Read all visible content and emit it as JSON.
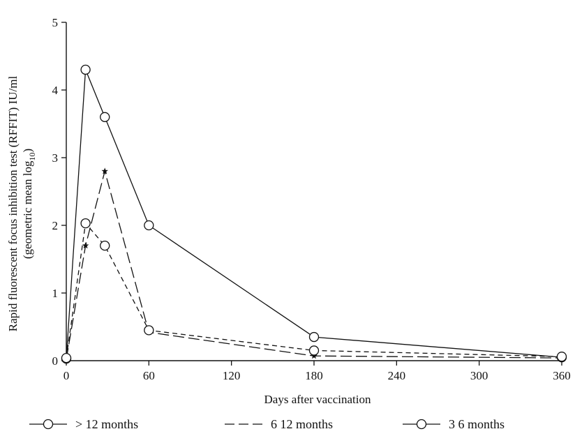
{
  "chart_data": {
    "type": "line",
    "title": "",
    "xlabel": "Days after vaccination",
    "ylabel_line1": "Rapid fluorescent focus inhibition test (RFFIT) IU/ml",
    "ylabel_line2_prefix": "(geometric mean log",
    "ylabel_line2_sub": "10",
    "ylabel_line2_suffix": ")",
    "xlim": [
      0,
      360
    ],
    "ylim": [
      0,
      5
    ],
    "x_ticks": [
      0,
      60,
      120,
      180,
      240,
      300,
      360
    ],
    "x_tick_labels": [
      "0",
      "60",
      "120",
      "180",
      "240",
      "300",
      "360"
    ],
    "y_ticks": [
      0,
      1,
      2,
      3,
      4,
      5
    ],
    "y_tick_labels": [
      "0",
      "1",
      "2",
      "3",
      "4",
      "5"
    ],
    "grid": false,
    "legend_position": "bottom",
    "series": [
      {
        "name": "> 12 months",
        "line_style": "solid",
        "marker": "circle",
        "x": [
          0,
          14,
          28,
          60,
          180,
          360
        ],
        "y": [
          0.03,
          4.3,
          3.6,
          2.0,
          0.35,
          0.05
        ]
      },
      {
        "name": "6 12 months",
        "line_style": "long-dash",
        "marker": "star",
        "x": [
          0,
          14,
          28,
          60,
          180,
          360
        ],
        "y": [
          0.02,
          1.7,
          2.8,
          0.42,
          0.07,
          0.04
        ]
      },
      {
        "name": "3 6 months",
        "line_style": "short-dash",
        "marker": "circle",
        "x": [
          0,
          14,
          28,
          60,
          180,
          360
        ],
        "y": [
          0.04,
          2.03,
          1.7,
          0.45,
          0.15,
          0.06
        ]
      }
    ]
  },
  "legend": {
    "items": [
      {
        "label": "> 12 months",
        "swatch": "solid-circle"
      },
      {
        "label": "6 12 months",
        "swatch": "long-dash"
      },
      {
        "label": "3 6 months",
        "swatch": "solid-circle"
      }
    ]
  }
}
